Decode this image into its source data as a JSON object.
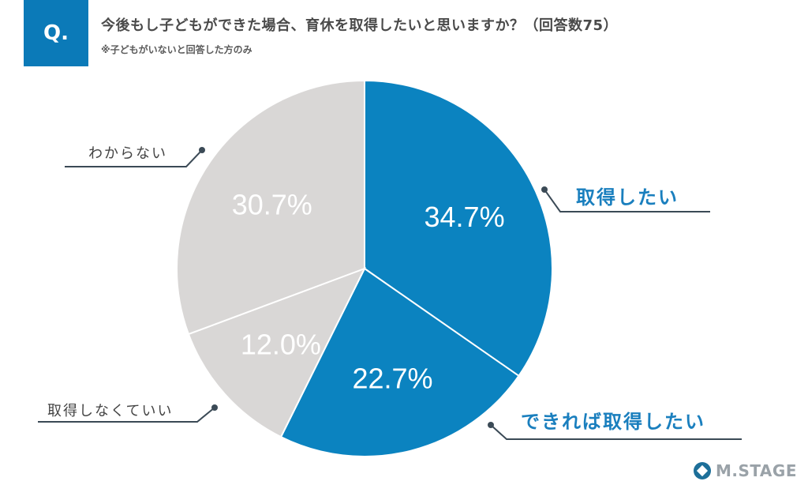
{
  "header": {
    "badge": "Q.",
    "question": "今後もし子どもができた場合、育休を取得したいと思いますか？（回答数75）",
    "note": "※子どもがいないと回答した方のみ"
  },
  "colors": {
    "blue": "#0b83c0",
    "grey": "#d9d7d6",
    "label_blue": "#1a7fbe",
    "label_grey": "#444444",
    "leader": "#3b4a56"
  },
  "chart_data": {
    "type": "pie",
    "start_direction": "top",
    "order": "clockwise",
    "slices": [
      {
        "label": "取得したい",
        "value": 34.7,
        "value_text": "34.7%",
        "color": "#0b83c0"
      },
      {
        "label": "できれば取得したい",
        "value": 22.7,
        "value_text": "22.7%",
        "color": "#0b83c0"
      },
      {
        "label": "取得しなくていい",
        "value": 12.0,
        "value_text": "12.0%",
        "color": "#d9d7d6"
      },
      {
        "label": "わからない",
        "value": 30.7,
        "value_text": "30.7%",
        "color": "#d9d7d6"
      }
    ]
  },
  "logo": {
    "text": "M.STAGE"
  }
}
